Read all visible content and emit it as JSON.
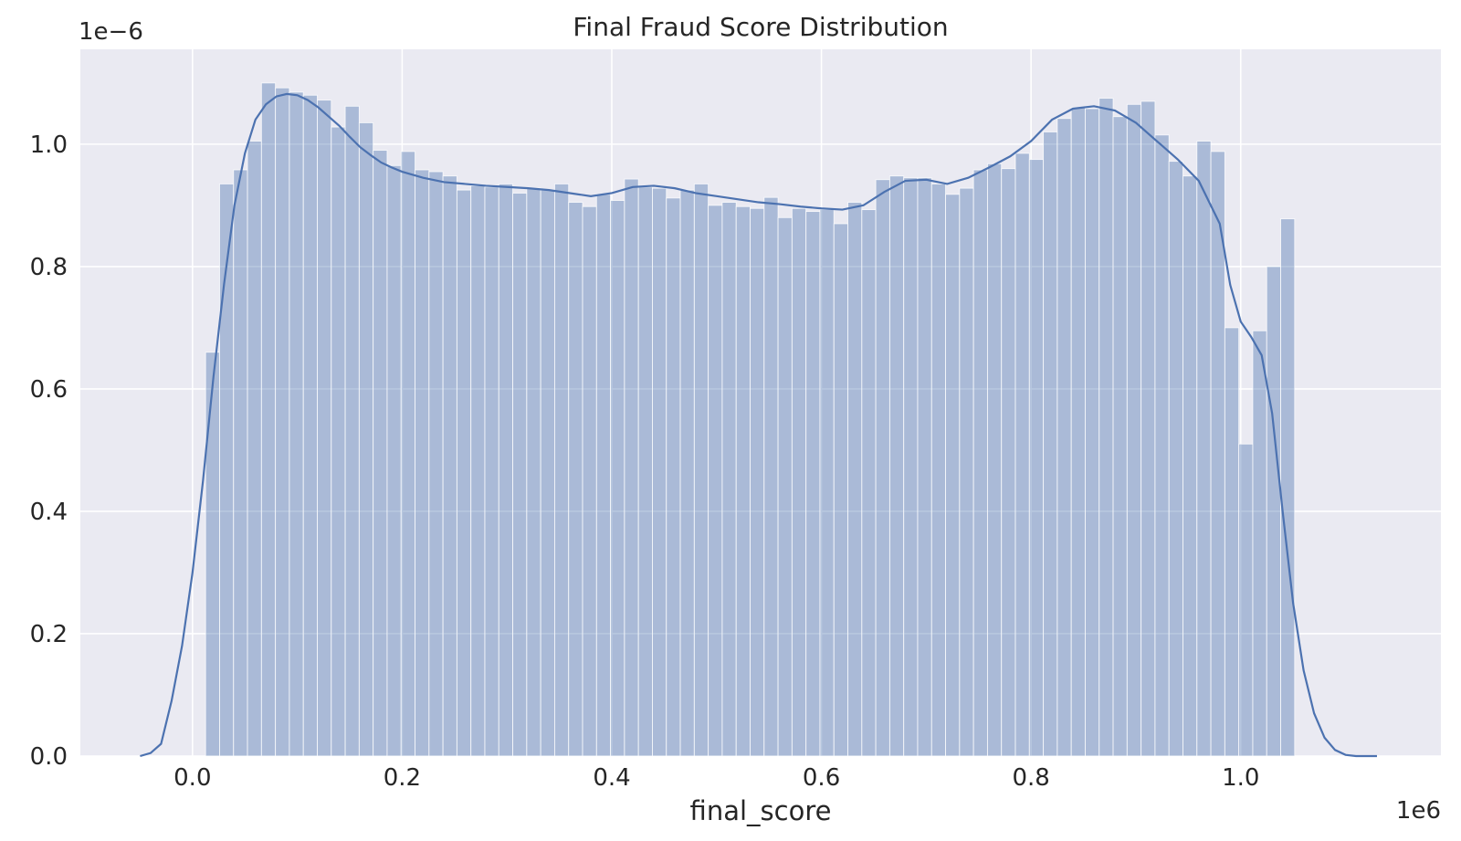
{
  "chart_data": {
    "type": "bar",
    "title": "Final Fraud Score Distribution",
    "xlabel": "final_score",
    "ylabel": "",
    "x_offset_label": "1e6",
    "y_offset_label": "1e−6",
    "xlim": [
      -0.107,
      1.191
    ],
    "ylim": [
      0,
      1.155
    ],
    "xticks": [
      0.0,
      0.2,
      0.4,
      0.6,
      0.8,
      1.0
    ],
    "xtick_labels": [
      "0.0",
      "0.2",
      "0.4",
      "0.6",
      "0.8",
      "1.0"
    ],
    "yticks": [
      0.0,
      0.2,
      0.4,
      0.6,
      0.8,
      1.0
    ],
    "ytick_labels": [
      "0.0",
      "0.2",
      "0.4",
      "0.6",
      "0.8",
      "1.0"
    ],
    "grid": true,
    "bins": {
      "start": 0.0125,
      "width": 0.01332,
      "heights": [
        0.66,
        0.935,
        0.958,
        1.005,
        1.1,
        1.092,
        1.085,
        1.08,
        1.072,
        1.028,
        1.062,
        1.035,
        0.99,
        0.965,
        0.988,
        0.958,
        0.955,
        0.948,
        0.925,
        0.932,
        0.93,
        0.935,
        0.92,
        0.928,
        0.925,
        0.935,
        0.905,
        0.898,
        0.918,
        0.908,
        0.943,
        0.93,
        0.928,
        0.912,
        0.925,
        0.935,
        0.9,
        0.905,
        0.898,
        0.895,
        0.913,
        0.88,
        0.895,
        0.89,
        0.893,
        0.87,
        0.905,
        0.893,
        0.942,
        0.948,
        0.945,
        0.945,
        0.935,
        0.918,
        0.928,
        0.958,
        0.968,
        0.96,
        0.985,
        0.975,
        1.02,
        1.042,
        1.06,
        1.058,
        1.075,
        1.045,
        1.065,
        1.07,
        1.015,
        0.972,
        0.948,
        1.005,
        0.988,
        0.7,
        0.51,
        0.695,
        0.8,
        0.878
      ]
    },
    "kde": {
      "x": [
        -0.05,
        -0.04,
        -0.03,
        -0.02,
        -0.01,
        0.0,
        0.01,
        0.02,
        0.03,
        0.04,
        0.05,
        0.06,
        0.07,
        0.08,
        0.09,
        0.1,
        0.11,
        0.12,
        0.13,
        0.14,
        0.15,
        0.16,
        0.17,
        0.18,
        0.19,
        0.2,
        0.22,
        0.24,
        0.26,
        0.28,
        0.3,
        0.32,
        0.34,
        0.36,
        0.38,
        0.4,
        0.42,
        0.44,
        0.46,
        0.48,
        0.5,
        0.52,
        0.54,
        0.56,
        0.58,
        0.6,
        0.62,
        0.64,
        0.66,
        0.68,
        0.7,
        0.72,
        0.74,
        0.76,
        0.78,
        0.8,
        0.82,
        0.84,
        0.86,
        0.88,
        0.9,
        0.92,
        0.94,
        0.96,
        0.98,
        0.99,
        1.0,
        1.01,
        1.02,
        1.03,
        1.04,
        1.05,
        1.06,
        1.07,
        1.08,
        1.09,
        1.1,
        1.11,
        1.12,
        1.13
      ],
      "y": [
        0.0,
        0.005,
        0.02,
        0.09,
        0.18,
        0.3,
        0.45,
        0.62,
        0.77,
        0.9,
        0.985,
        1.04,
        1.065,
        1.078,
        1.082,
        1.08,
        1.072,
        1.06,
        1.045,
        1.03,
        1.012,
        0.995,
        0.982,
        0.97,
        0.962,
        0.955,
        0.945,
        0.938,
        0.935,
        0.932,
        0.93,
        0.928,
        0.925,
        0.92,
        0.915,
        0.92,
        0.93,
        0.932,
        0.928,
        0.92,
        0.915,
        0.91,
        0.905,
        0.902,
        0.898,
        0.895,
        0.893,
        0.9,
        0.922,
        0.94,
        0.942,
        0.935,
        0.945,
        0.962,
        0.98,
        1.005,
        1.04,
        1.058,
        1.062,
        1.055,
        1.035,
        1.005,
        0.975,
        0.94,
        0.87,
        0.77,
        0.71,
        0.685,
        0.655,
        0.56,
        0.4,
        0.25,
        0.14,
        0.07,
        0.03,
        0.01,
        0.002,
        0.0,
        0.0,
        0.0
      ]
    },
    "colors": {
      "axes_bg": "#eaeaf2",
      "grid": "#ffffff",
      "bar": "#4c72b0",
      "bar_opacity": 0.4,
      "kde_line": "#4c72b0",
      "text": "#262626"
    }
  }
}
